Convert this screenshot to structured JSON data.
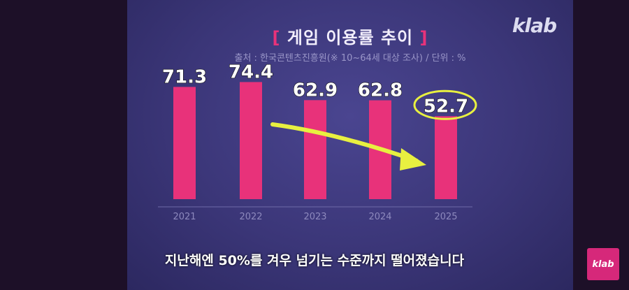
{
  "title_text": "게임 이용률 추이",
  "bracket_left": "[",
  "bracket_right": "]",
  "subtitle": "출처 : 한국콘텐츠진흥원(※ 10~64세 대상 조사) / 단위 : %",
  "logo": "klab",
  "corner_logo": "klab",
  "caption": "지난해엔 50%를 겨우 넘기는 수준까지 떨어졌습니다",
  "colors": {
    "bar": "#e8327a",
    "arrow": "#e8f040",
    "highlight_circle": "#e8f040",
    "axis": "#6e6aa8"
  },
  "chart_data": {
    "type": "bar",
    "title": "게임 이용률 추이",
    "categories": [
      "2021",
      "2022",
      "2023",
      "2024",
      "2025"
    ],
    "values": [
      71.3,
      74.4,
      62.9,
      62.8,
      52.7
    ],
    "value_labels": [
      "71.3",
      "74.4",
      "62.9",
      "62.8",
      "52.7"
    ],
    "unit": "%",
    "ylim": [
      0,
      80
    ],
    "grid": false,
    "legend": "none",
    "annotations": [
      "downward arrow from 2022 to 2025",
      "circle around 2025 label"
    ]
  }
}
